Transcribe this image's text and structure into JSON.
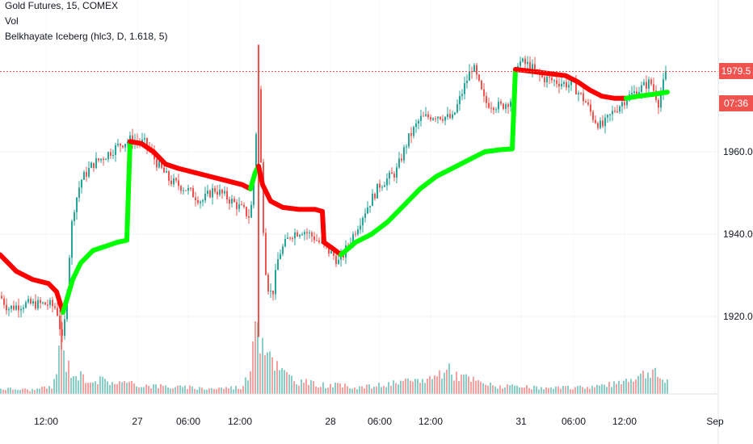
{
  "legend": {
    "symbol": "Gold Futures, 15, COMEX",
    "vol": "Vol",
    "indicator": "Belkhayate Iceberg (hlc3, D, 1.618, 5)"
  },
  "price_tags": {
    "last_price": "1979.5",
    "countdown": "07:36",
    "color": "#ef5350"
  },
  "colors": {
    "up": "#26a69a",
    "down": "#ef5350",
    "band_up": "#00ff00",
    "band_down": "#ff0000",
    "grid": "#eef0f3"
  },
  "chart_data": {
    "type": "candlestick",
    "y_ticks": [
      "1960.0",
      "1940.0",
      "1920.0"
    ],
    "x_ticks": [
      "12:00",
      "27",
      "06:00",
      "12:00",
      "28",
      "06:00",
      "12:00",
      "31",
      "06:00",
      "12:00",
      "Sep"
    ],
    "ylim": [
      1900,
      1990
    ],
    "last_price": 1979.5,
    "price_path": [
      [
        0,
        1925
      ],
      [
        10,
        1922
      ],
      [
        30,
        1923
      ],
      [
        60,
        1923
      ],
      [
        70,
        1922
      ],
      [
        78,
        1913
      ],
      [
        84,
        1930
      ],
      [
        90,
        1945
      ],
      [
        100,
        1953
      ],
      [
        115,
        1957
      ],
      [
        130,
        1959
      ],
      [
        150,
        1962
      ],
      [
        162,
        1963
      ],
      [
        180,
        1962
      ],
      [
        195,
        1957
      ],
      [
        210,
        1953
      ],
      [
        230,
        1951
      ],
      [
        250,
        1948
      ],
      [
        265,
        1951
      ],
      [
        280,
        1949
      ],
      [
        300,
        1946
      ],
      [
        310,
        1944
      ],
      [
        315,
        1958
      ],
      [
        320,
        1975
      ],
      [
        325,
        1945
      ],
      [
        330,
        1928
      ],
      [
        337,
        1925
      ],
      [
        345,
        1935
      ],
      [
        360,
        1940
      ],
      [
        375,
        1941
      ],
      [
        390,
        1939
      ],
      [
        400,
        1937
      ],
      [
        412,
        1935
      ],
      [
        420,
        1933
      ],
      [
        430,
        1937
      ],
      [
        450,
        1945
      ],
      [
        470,
        1952
      ],
      [
        490,
        1955
      ],
      [
        505,
        1963
      ],
      [
        520,
        1968
      ],
      [
        540,
        1969
      ],
      [
        560,
        1968
      ],
      [
        575,
        1976
      ],
      [
        585,
        1981
      ],
      [
        600,
        1972
      ],
      [
        620,
        1971
      ],
      [
        635,
        1973
      ],
      [
        640,
        1982
      ],
      [
        655,
        1981
      ],
      [
        670,
        1978
      ],
      [
        690,
        1977
      ],
      [
        710,
        1976
      ],
      [
        725,
        1972
      ],
      [
        735,
        1968
      ],
      [
        745,
        1966
      ],
      [
        760,
        1970
      ],
      [
        775,
        1973
      ],
      [
        790,
        1975
      ],
      [
        805,
        1977
      ],
      [
        815,
        1972
      ],
      [
        825,
        1979.5
      ]
    ],
    "band_segments": [
      {
        "color": "down",
        "points": [
          [
            0,
            1935
          ],
          [
            20,
            1931
          ],
          [
            40,
            1929
          ],
          [
            60,
            1928
          ],
          [
            70,
            1926
          ],
          [
            78,
            1921
          ]
        ]
      },
      {
        "color": "up",
        "points": [
          [
            78,
            1921
          ],
          [
            90,
            1929
          ],
          [
            100,
            1933
          ],
          [
            115,
            1936
          ],
          [
            130,
            1937
          ],
          [
            145,
            1938
          ],
          [
            157,
            1938.5
          ]
        ]
      },
      {
        "color": "up",
        "points": [
          [
            157,
            1938.5
          ],
          [
            161,
            1962.5
          ]
        ]
      },
      {
        "color": "down",
        "points": [
          [
            161,
            1962.5
          ],
          [
            175,
            1962
          ],
          [
            190,
            1960
          ],
          [
            205,
            1957
          ],
          [
            220,
            1956
          ],
          [
            240,
            1955
          ],
          [
            260,
            1954
          ],
          [
            280,
            1953
          ],
          [
            300,
            1952
          ],
          [
            310,
            1951
          ]
        ]
      },
      {
        "color": "up",
        "points": [
          [
            310,
            1951
          ],
          [
            316,
            1955
          ],
          [
            320,
            1956.5
          ]
        ]
      },
      {
        "color": "down",
        "points": [
          [
            320,
            1956.5
          ],
          [
            325,
            1952
          ],
          [
            335,
            1948
          ],
          [
            350,
            1946.5
          ],
          [
            370,
            1946
          ],
          [
            390,
            1946
          ],
          [
            399,
            1945.5
          ]
        ]
      },
      {
        "color": "down",
        "points": [
          [
            399,
            1945.5
          ],
          [
            401,
            1938
          ],
          [
            412,
            1936.5
          ],
          [
            422,
            1935
          ]
        ]
      },
      {
        "color": "up",
        "points": [
          [
            422,
            1935
          ],
          [
            440,
            1938
          ],
          [
            460,
            1940
          ],
          [
            480,
            1943
          ],
          [
            500,
            1947
          ],
          [
            520,
            1951
          ],
          [
            540,
            1954
          ],
          [
            560,
            1956
          ],
          [
            580,
            1958
          ],
          [
            600,
            1960
          ],
          [
            620,
            1960.5
          ],
          [
            634,
            1960.7
          ]
        ]
      },
      {
        "color": "up",
        "points": [
          [
            634,
            1960.7
          ],
          [
            638,
            1980
          ]
        ]
      },
      {
        "color": "down",
        "points": [
          [
            638,
            1980
          ],
          [
            660,
            1979.5
          ],
          [
            680,
            1979
          ],
          [
            700,
            1978.5
          ],
          [
            715,
            1977
          ],
          [
            730,
            1975
          ],
          [
            745,
            1973.5
          ],
          [
            760,
            1973
          ],
          [
            775,
            1973
          ]
        ]
      },
      {
        "color": "up",
        "points": [
          [
            775,
            1973
          ],
          [
            790,
            1973.5
          ],
          [
            810,
            1974
          ],
          [
            826,
            1974.5
          ]
        ]
      }
    ],
    "volume_path": [
      [
        0,
        8
      ],
      [
        40,
        6
      ],
      [
        65,
        10
      ],
      [
        72,
        45
      ],
      [
        76,
        95
      ],
      [
        80,
        50
      ],
      [
        90,
        30
      ],
      [
        110,
        22
      ],
      [
        140,
        18
      ],
      [
        165,
        14
      ],
      [
        190,
        12
      ],
      [
        220,
        10
      ],
      [
        260,
        8
      ],
      [
        300,
        10
      ],
      [
        312,
        40
      ],
      [
        318,
        145
      ],
      [
        322,
        90
      ],
      [
        330,
        75
      ],
      [
        345,
        35
      ],
      [
        365,
        20
      ],
      [
        390,
        14
      ],
      [
        420,
        12
      ],
      [
        450,
        10
      ],
      [
        480,
        14
      ],
      [
        510,
        18
      ],
      [
        540,
        25
      ],
      [
        550,
        38
      ],
      [
        565,
        28
      ],
      [
        590,
        18
      ],
      [
        610,
        12
      ],
      [
        640,
        10
      ],
      [
        680,
        8
      ],
      [
        720,
        10
      ],
      [
        760,
        14
      ],
      [
        780,
        24
      ],
      [
        795,
        28
      ],
      [
        805,
        34
      ],
      [
        815,
        25
      ],
      [
        825,
        18
      ]
    ]
  }
}
